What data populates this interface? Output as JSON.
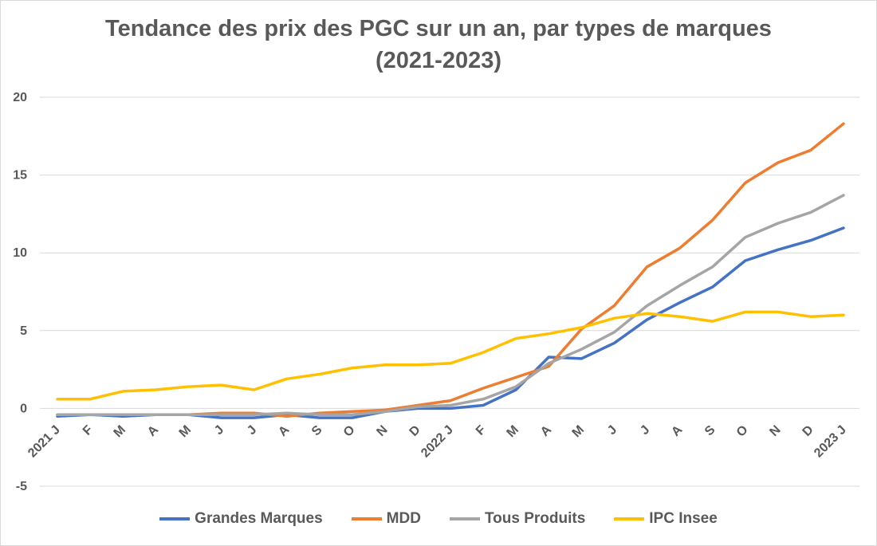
{
  "chart_data": {
    "type": "line",
    "title": "Tendance des prix des PGC sur un an, par types de marques",
    "subtitle": "(2021-2023)",
    "categories": [
      "2021 J",
      "F",
      "M",
      "A",
      "M",
      "J",
      "J",
      "A",
      "S",
      "O",
      "N",
      "D",
      "2022 J",
      "F",
      "M",
      "A",
      "M",
      "J",
      "J",
      "A",
      "S",
      "O",
      "N",
      "D",
      "2023 J"
    ],
    "ylim": [
      -5,
      20
    ],
    "yticks": [
      -5,
      0,
      5,
      10,
      15,
      20
    ],
    "grid": true,
    "legend_position": "bottom",
    "series": [
      {
        "name": "Grandes Marques",
        "color": "#4472C4",
        "values": [
          -0.5,
          -0.4,
          -0.5,
          -0.4,
          -0.4,
          -0.6,
          -0.6,
          -0.4,
          -0.6,
          -0.6,
          -0.2,
          0.0,
          0.0,
          0.2,
          1.2,
          3.3,
          3.2,
          4.2,
          5.7,
          6.8,
          7.8,
          9.5,
          10.2,
          10.8,
          11.6
        ]
      },
      {
        "name": "MDD",
        "color": "#ED7D31",
        "values": [
          -0.4,
          -0.4,
          -0.4,
          -0.4,
          -0.4,
          -0.3,
          -0.3,
          -0.5,
          -0.3,
          -0.2,
          -0.1,
          0.2,
          0.5,
          1.3,
          2.0,
          2.7,
          5.1,
          6.6,
          9.1,
          10.3,
          12.1,
          14.5,
          15.8,
          16.6,
          18.3
        ]
      },
      {
        "name": "Tous Produits",
        "color": "#A5A5A5",
        "values": [
          -0.4,
          -0.4,
          -0.4,
          -0.4,
          -0.4,
          -0.4,
          -0.4,
          -0.3,
          -0.4,
          -0.4,
          -0.2,
          0.1,
          0.2,
          0.6,
          1.4,
          2.9,
          3.8,
          4.9,
          6.6,
          7.9,
          9.1,
          11.0,
          11.9,
          12.6,
          13.7
        ]
      },
      {
        "name": "IPC Insee",
        "color": "#FFC000",
        "values": [
          0.6,
          0.6,
          1.1,
          1.2,
          1.4,
          1.5,
          1.2,
          1.9,
          2.2,
          2.6,
          2.8,
          2.8,
          2.9,
          3.6,
          4.5,
          4.8,
          5.2,
          5.8,
          6.1,
          5.9,
          5.6,
          6.2,
          6.2,
          5.9,
          6.0
        ]
      }
    ]
  }
}
